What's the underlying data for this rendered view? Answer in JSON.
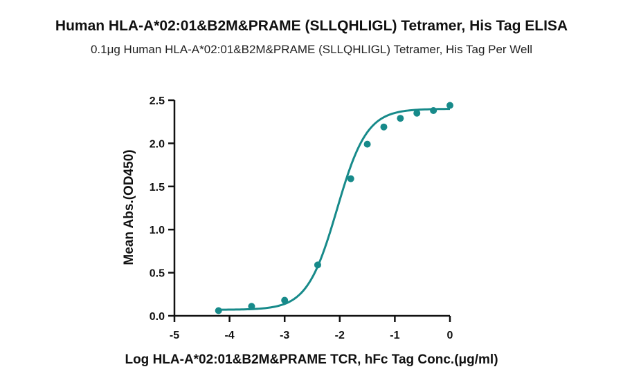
{
  "chart_data": {
    "type": "scatter",
    "title": "Human HLA-A*02:01&B2M&PRAME (SLLQHLIGL) Tetramer, His Tag ELISA",
    "subtitle": "0.1μg Human HLA-A*02:01&B2M&PRAME (SLLQHLIGL) Tetramer, His Tag Per Well",
    "xlabel": "Log HLA-A*02:01&B2M&PRAME TCR, hFc Tag Conc.(μg/ml)",
    "ylabel": "Mean Abs.(OD450)",
    "xlim": [
      -5,
      0
    ],
    "ylim": [
      0,
      2.5
    ],
    "x_ticks": [
      "-5",
      "-4",
      "-3",
      "-2",
      "-1",
      "0"
    ],
    "y_ticks": [
      "0.0",
      "0.5",
      "1.0",
      "1.5",
      "2.0",
      "2.5"
    ],
    "grid": false,
    "color": "#178a8a",
    "series": [
      {
        "x": [
          -4.2,
          -3.6,
          -3.0,
          -2.4,
          -1.8,
          -1.5,
          -1.2,
          -0.9,
          -0.6,
          -0.3,
          0.0
        ],
        "y": [
          0.06,
          0.11,
          0.18,
          0.59,
          1.59,
          1.99,
          2.19,
          2.29,
          2.35,
          2.38,
          2.44
        ]
      }
    ],
    "fit": {
      "type": "four-parameter-logistic",
      "bottom": 0.07,
      "top": 2.4,
      "logEC50": -2.05,
      "hill": 1.6
    }
  }
}
